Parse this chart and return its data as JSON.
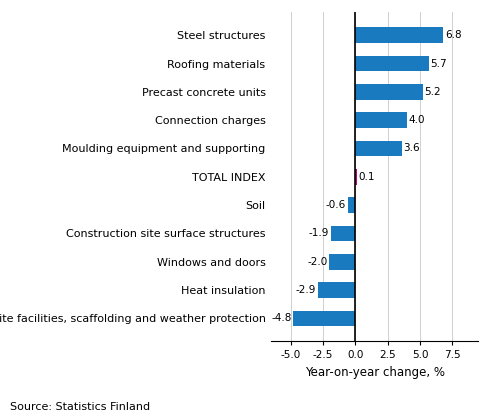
{
  "categories": [
    "Site facilities, scaffolding and weather protection",
    "Heat insulation",
    "Windows and doors",
    "Construction site surface structures",
    "Soil",
    "TOTAL INDEX",
    "Moulding equipment and supporting",
    "Connection charges",
    "Precast concrete units",
    "Roofing materials",
    "Steel structures"
  ],
  "values": [
    -4.8,
    -2.9,
    -2.0,
    -1.9,
    -0.6,
    0.1,
    3.6,
    4.0,
    5.2,
    5.7,
    6.8
  ],
  "bar_colors": [
    "#1a7abf",
    "#1a7abf",
    "#1a7abf",
    "#1a7abf",
    "#1a7abf",
    "#c0007a",
    "#1a7abf",
    "#1a7abf",
    "#1a7abf",
    "#1a7abf",
    "#1a7abf"
  ],
  "xlabel": "Year-on-year change, %",
  "xlim": [
    -6.5,
    9.5
  ],
  "xticks": [
    -5.0,
    -2.5,
    0.0,
    2.5,
    5.0,
    7.5
  ],
  "xtick_labels": [
    "-5.0",
    "-2.5",
    "0.0",
    "2.5",
    "5.0",
    "7.5"
  ],
  "source_text": "Source: Statistics Finland",
  "value_label_fontsize": 7.5,
  "category_fontsize": 8.0,
  "xlabel_fontsize": 8.5,
  "source_fontsize": 8.0,
  "bar_height": 0.55
}
